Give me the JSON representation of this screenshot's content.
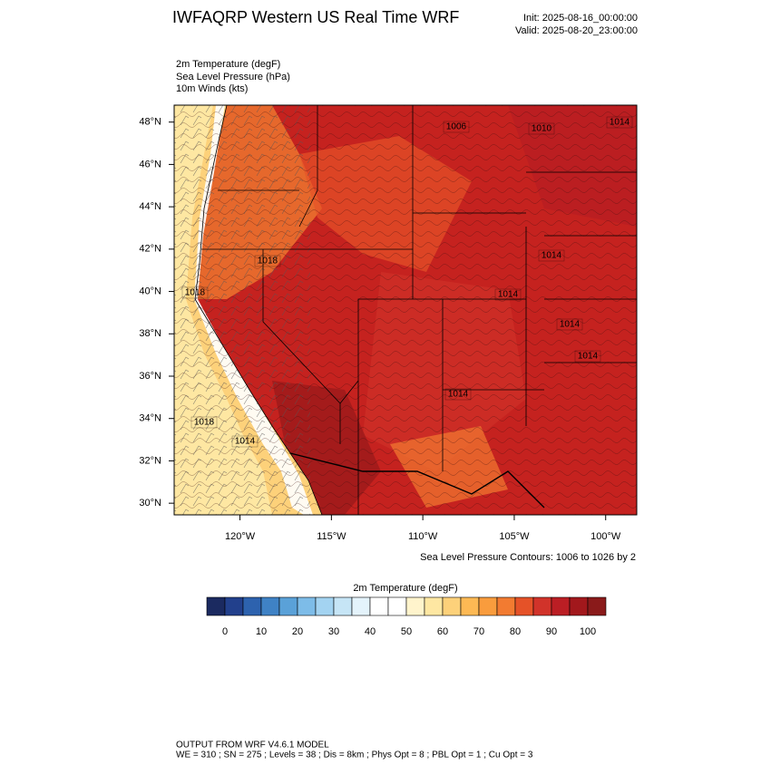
{
  "header": {
    "title": "IWFAQRP Western US Real Time WRF",
    "init": "Init: 2025-08-16_00:00:00",
    "valid": "Valid: 2025-08-20_23:00:00"
  },
  "fields": [
    "2m Temperature   (degF)",
    "Sea Level Pressure   (hPa)",
    "10m Winds   (kts)"
  ],
  "map": {
    "xlim": [
      -123.6,
      -98.3
    ],
    "ylim": [
      29.45,
      48.8
    ],
    "xticks": [
      {
        "value": -120,
        "label": "120°W"
      },
      {
        "value": -115,
        "label": "115°W"
      },
      {
        "value": -110,
        "label": "110°W"
      },
      {
        "value": -105,
        "label": "105°W"
      },
      {
        "value": -100,
        "label": "100°W"
      }
    ],
    "yticks": [
      {
        "value": 30,
        "label": "30°N"
      },
      {
        "value": 32,
        "label": "32°N"
      },
      {
        "value": 34,
        "label": "34°N"
      },
      {
        "value": 36,
        "label": "36°N"
      },
      {
        "value": 38,
        "label": "38°N"
      },
      {
        "value": 40,
        "label": "40°N"
      },
      {
        "value": 42,
        "label": "42°N"
      },
      {
        "value": 44,
        "label": "44°N"
      },
      {
        "value": 46,
        "label": "46°N"
      },
      {
        "value": 48,
        "label": "48°N"
      }
    ],
    "contour_labels": [
      1006,
      1010,
      1014,
      1018,
      1018,
      1014,
      1014,
      1014,
      1014,
      1014,
      1018,
      1014
    ]
  },
  "contour_note": "Sea Level Pressure Contours: 1006 to 1026 by 2",
  "colorbar": {
    "title": "2m Temperature  (degF)",
    "levels": [
      0,
      5,
      10,
      15,
      20,
      25,
      30,
      35,
      40,
      45,
      50,
      55,
      60,
      65,
      70,
      75,
      80,
      85,
      90,
      95,
      100
    ],
    "colors": [
      "#1b2a60",
      "#22408c",
      "#2d62ae",
      "#3f82c5",
      "#5aa1d8",
      "#7dbce8",
      "#a3d3f1",
      "#c6e5f6",
      "#e4f3fb",
      "#ffffff",
      "#ffffff",
      "#fff4cc",
      "#fee7a2",
      "#fdd17a",
      "#fdb954",
      "#f99c3d",
      "#f27b31",
      "#e55228",
      "#d1332a",
      "#bb1e24",
      "#a2181c",
      "#8a1a1a"
    ],
    "ticks": [
      0,
      10,
      20,
      30,
      40,
      50,
      60,
      70,
      80,
      90,
      100
    ]
  },
  "footer": [
    "OUTPUT FROM WRF V4.6.1 MODEL",
    "WE = 310 ; SN = 275 ; Levels = 38 ; Dis = 8km ; Phys Opt = 8 ; PBL Opt = 1 ; Cu Opt = 3"
  ]
}
